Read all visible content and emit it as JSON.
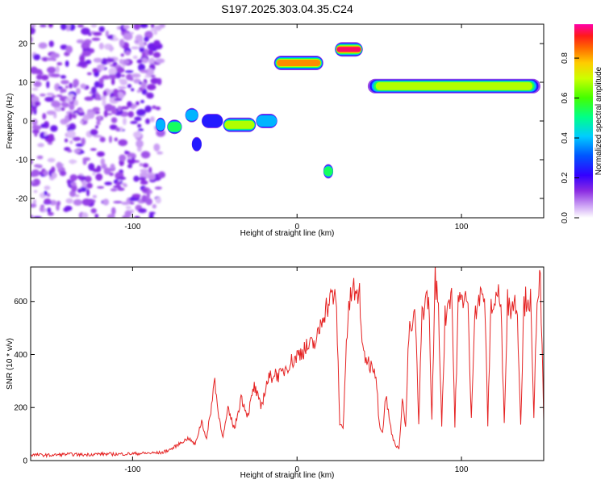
{
  "title": "S197.2025.303.04.35.C24",
  "colors": {
    "snr_line": "#e52222",
    "axis": "#000000",
    "colormap": [
      "#ffffff",
      "#e6d2f7",
      "#c9a0f0",
      "#9b4dea",
      "#7f1fe6",
      "#2b00ff",
      "#0066ff",
      "#00ccff",
      "#00ff66",
      "#66ff00",
      "#ffee00",
      "#ff8800",
      "#ff2200",
      "#ff00aa"
    ]
  },
  "chart_data": [
    {
      "type": "heatmap",
      "name": "spectrogram",
      "xlabel": "Height of straight line (km)",
      "ylabel": "Frequency (Hz)",
      "xlim": [
        -162,
        150
      ],
      "ylim": [
        -25,
        25
      ],
      "xticks": [
        -100,
        0,
        100
      ],
      "xtick_labels": [
        "-100",
        "0",
        "100"
      ],
      "yticks": [
        -20,
        -10,
        0,
        10,
        20
      ],
      "ytick_labels": [
        "-20",
        "-10",
        "0",
        "10",
        "20"
      ],
      "colorbar": {
        "label": "Normalized spectral amplitude",
        "range": [
          0,
          0.97
        ],
        "ticks": [
          0,
          0.2,
          0.4,
          0.6,
          0.8
        ],
        "tick_labels": [
          "0.0",
          "0.2",
          "0.4",
          "0.6",
          "0.8"
        ]
      },
      "features": [
        {
          "label": "noise",
          "x": [
            -162,
            -82
          ],
          "y": [
            -25,
            25
          ],
          "amp": 0.12
        },
        {
          "label": "echo",
          "x": [
            -86,
            -80
          ],
          "y": -1,
          "amp": 0.45
        },
        {
          "label": "echo",
          "x": [
            -79,
            -70
          ],
          "y": -1.5,
          "amp": 0.55
        },
        {
          "label": "echo",
          "x": [
            -68,
            -60
          ],
          "y": 1.5,
          "amp": 0.4
        },
        {
          "label": "echo",
          "x": [
            -64,
            -58
          ],
          "y": -6,
          "amp": 0.3
        },
        {
          "label": "echo",
          "x": [
            -58,
            -45
          ],
          "y": 0,
          "amp": 0.3
        },
        {
          "label": "echo",
          "x": [
            -45,
            -25
          ],
          "y": -1,
          "amp": 0.75
        },
        {
          "label": "echo",
          "x": [
            -25,
            -12
          ],
          "y": 0,
          "amp": 0.45
        },
        {
          "label": "echo",
          "x": [
            -14,
            16
          ],
          "y": 15,
          "amp": 0.85
        },
        {
          "label": "echo",
          "x": [
            16,
            22
          ],
          "y": -13,
          "amp": 0.55
        },
        {
          "label": "echo",
          "x": [
            23,
            40
          ],
          "y": 18.5,
          "amp": 0.97
        },
        {
          "label": "echo",
          "x": [
            43,
            148
          ],
          "y": 9,
          "amp": 0.8
        }
      ]
    },
    {
      "type": "line",
      "name": "snr",
      "xlabel": "Height of straight line (km)",
      "ylabel": "SNR (10 * v/v)",
      "xlim": [
        -162,
        150
      ],
      "ylim": [
        0,
        730
      ],
      "xticks": [
        -100,
        0,
        100
      ],
      "xtick_labels": [
        "-100",
        "0",
        "100"
      ],
      "yticks": [
        0,
        200,
        400,
        600
      ],
      "ytick_labels": [
        "0",
        "200",
        "400",
        "600"
      ],
      "series": [
        {
          "name": "SNR",
          "x": [
            -162,
            -150,
            -140,
            -130,
            -120,
            -110,
            -100,
            -90,
            -82,
            -76,
            -70,
            -66,
            -62,
            -58,
            -55,
            -52,
            -50,
            -48,
            -45,
            -42,
            -38,
            -34,
            -30,
            -26,
            -22,
            -18,
            -14,
            -10,
            -6,
            -2,
            0,
            4,
            8,
            12,
            16,
            20,
            22,
            24,
            26,
            28,
            30,
            32,
            34,
            36,
            38,
            40,
            42,
            44,
            46,
            48,
            50,
            52,
            54,
            56,
            58,
            60,
            62,
            64,
            66,
            68,
            70,
            72,
            74,
            76,
            78,
            80,
            82,
            84,
            86,
            88,
            90,
            92,
            94,
            96,
            98,
            100,
            102,
            104,
            106,
            108,
            110,
            112,
            114,
            116,
            118,
            120,
            122,
            124,
            126,
            128,
            130,
            132,
            134,
            136,
            138,
            140,
            142,
            144,
            146,
            148,
            150
          ],
          "y": [
            22,
            20,
            24,
            22,
            25,
            24,
            26,
            28,
            30,
            45,
            70,
            85,
            60,
            150,
            80,
            210,
            310,
            180,
            90,
            190,
            120,
            240,
            170,
            280,
            200,
            300,
            330,
            320,
            360,
            380,
            395,
            420,
            430,
            450,
            560,
            600,
            630,
            570,
            140,
            120,
            450,
            590,
            660,
            600,
            640,
            400,
            390,
            360,
            365,
            330,
            140,
            110,
            250,
            160,
            90,
            60,
            40,
            240,
            120,
            480,
            500,
            550,
            130,
            560,
            600,
            620,
            150,
            700,
            560,
            140,
            540,
            600,
            650,
            130,
            590,
            600,
            640,
            560,
            150,
            570,
            600,
            620,
            630,
            140,
            600,
            580,
            650,
            560,
            150,
            600,
            580,
            600,
            570,
            140,
            590,
            620,
            600,
            150,
            640,
            680,
            150
          ]
        }
      ]
    }
  ]
}
